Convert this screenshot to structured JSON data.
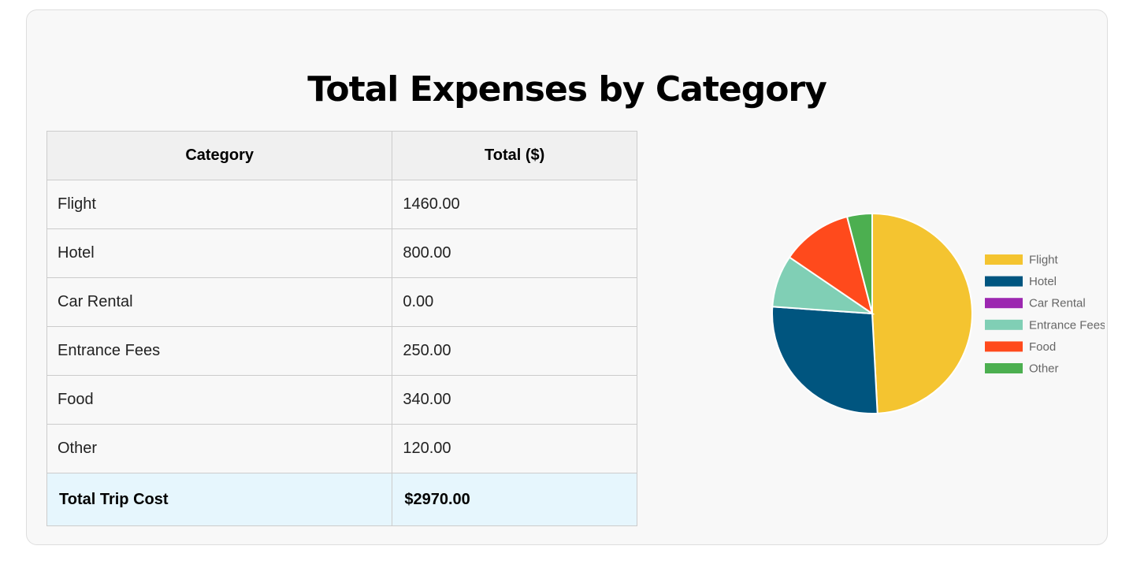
{
  "page": {
    "title": "Total Expenses by Category"
  },
  "table": {
    "headers": {
      "category": "Category",
      "total": "Total ($)"
    },
    "rows": [
      {
        "category": "Flight",
        "total": "1460.00"
      },
      {
        "category": "Hotel",
        "total": "800.00"
      },
      {
        "category": "Car Rental",
        "total": "0.00"
      },
      {
        "category": "Entrance Fees",
        "total": "250.00"
      },
      {
        "category": "Food",
        "total": "340.00"
      },
      {
        "category": "Other",
        "total": "120.00"
      }
    ],
    "total_row": {
      "label": "Total Trip Cost",
      "value": "$2970.00"
    }
  },
  "chart_data": {
    "type": "pie",
    "categories": [
      "Flight",
      "Hotel",
      "Car Rental",
      "Entrance Fees",
      "Food",
      "Other"
    ],
    "values": [
      1460,
      800,
      0,
      250,
      340,
      120
    ],
    "colors": [
      "#f4c430",
      "#00557f",
      "#9c27b0",
      "#80cfb5",
      "#ff4a1c",
      "#4caf50"
    ],
    "legend_position": "right"
  }
}
